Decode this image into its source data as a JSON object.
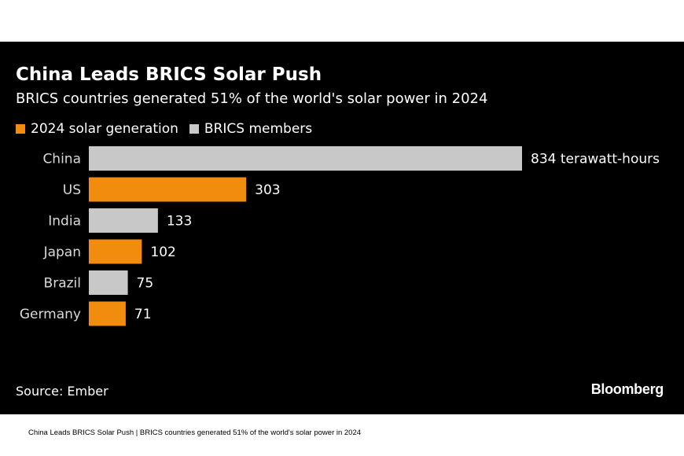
{
  "header": {
    "title": "China Leads BRICS Solar Push",
    "subtitle": "BRICS countries generated 51% of the world's solar power in 2024"
  },
  "legend": [
    {
      "label": "2024 solar generation",
      "color": "#f28c0f"
    },
    {
      "label": "BRICS members",
      "color": "#c8c8c8"
    }
  ],
  "footer": {
    "source": "Source: Ember",
    "logo": "Bloomberg"
  },
  "caption": "China Leads BRICS Solar Push | BRICS countries generated 51% of the world's solar power in 2024",
  "colors": {
    "background": "#000000",
    "brics": "#c8c8c8",
    "non_brics": "#f28c0f",
    "text": "#ffffff"
  },
  "chart_data": {
    "type": "bar",
    "orientation": "horizontal",
    "title": "China Leads BRICS Solar Push",
    "subtitle": "BRICS countries generated 51% of the world's solar power in 2024",
    "categories": [
      "China",
      "US",
      "India",
      "Japan",
      "Brazil",
      "Germany"
    ],
    "values": [
      834,
      303,
      133,
      102,
      75,
      71
    ],
    "value_labels": [
      "834 terawatt-hours",
      "303",
      "133",
      "102",
      "75",
      "71"
    ],
    "brics_member": [
      true,
      false,
      true,
      false,
      true,
      false
    ],
    "unit": "terawatt-hours",
    "xlim": [
      0,
      834
    ],
    "grid": false,
    "legend_position": "top-left"
  }
}
